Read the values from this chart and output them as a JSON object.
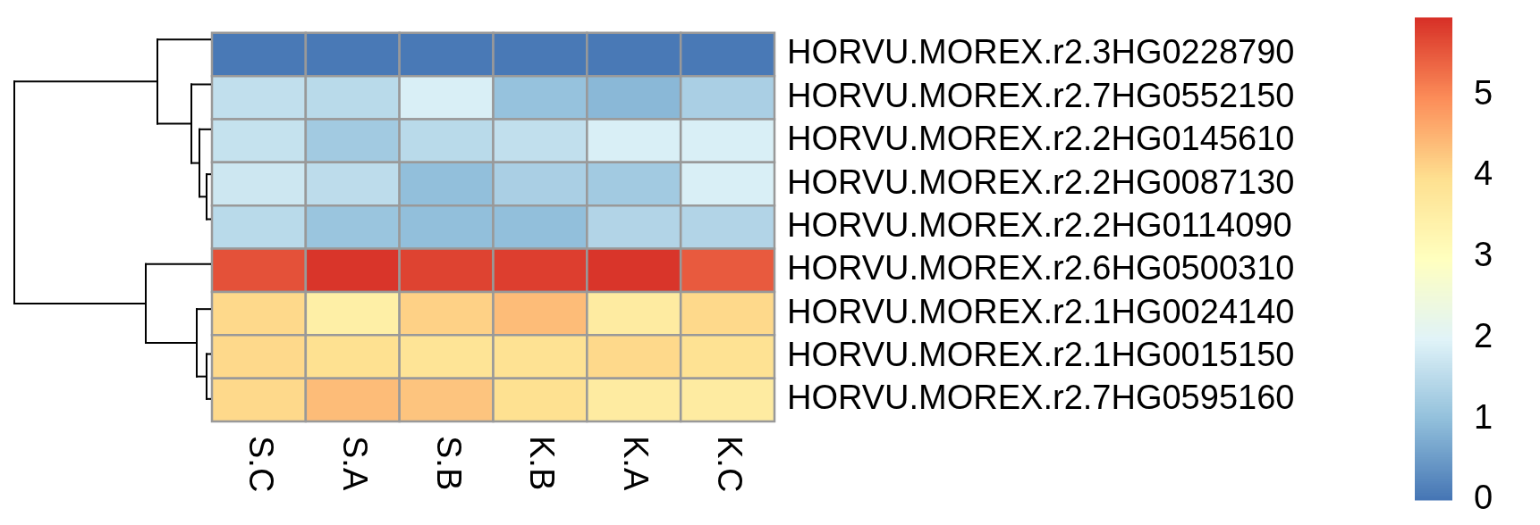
{
  "chart_data": {
    "type": "heatmap",
    "categories": [
      "S.C",
      "S.A",
      "S.B",
      "K.B",
      "K.A",
      "K.C"
    ],
    "y_categories": [
      "HORVU.MOREX.r2.3HG0228790",
      "HORVU.MOREX.r2.7HG0552150",
      "HORVU.MOREX.r2.2HG0145610",
      "HORVU.MOREX.r2.2HG0087130",
      "HORVU.MOREX.r2.2HG0114090",
      "HORVU.MOREX.r2.6HG0500310",
      "HORVU.MOREX.r2.1HG0024140",
      "HORVU.MOREX.r2.1HG0015150",
      "HORVU.MOREX.r2.7HG0595160"
    ],
    "cells": [
      [
        0.05,
        0.05,
        0.05,
        0.05,
        0.05,
        0.05
      ],
      [
        1.6,
        1.5,
        1.9,
        1.05,
        0.9,
        1.3
      ],
      [
        1.65,
        1.2,
        1.5,
        1.6,
        1.9,
        1.9
      ],
      [
        1.75,
        1.55,
        1.0,
        1.3,
        1.2,
        1.9
      ],
      [
        1.5,
        1.1,
        1.0,
        1.0,
        1.4,
        1.4
      ],
      [
        5.6,
        5.9,
        5.75,
        5.8,
        5.9,
        5.5
      ],
      [
        4.05,
        3.5,
        4.15,
        4.4,
        3.6,
        4.05
      ],
      [
        4.05,
        3.95,
        3.85,
        3.9,
        4.05,
        3.9
      ],
      [
        4.05,
        4.4,
        4.3,
        3.95,
        3.6,
        3.6
      ]
    ],
    "clim": [
      0,
      5.95
    ],
    "cticks": [
      0,
      1,
      2,
      3,
      4,
      5
    ]
  }
}
